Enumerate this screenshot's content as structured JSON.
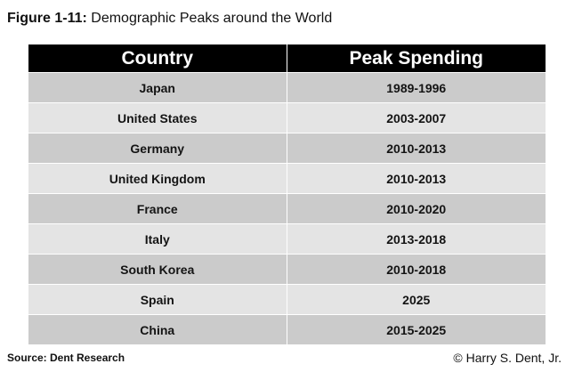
{
  "figure": {
    "label": "Figure 1-11:",
    "title": "Demographic Peaks around the World"
  },
  "table": {
    "headers": [
      "Country",
      "Peak Spending"
    ],
    "rows": [
      [
        "Japan",
        "1989-1996"
      ],
      [
        "United States",
        "2003-2007"
      ],
      [
        "Germany",
        "2010-2013"
      ],
      [
        "United Kingdom",
        "2010-2013"
      ],
      [
        "France",
        "2010-2020"
      ],
      [
        "Italy",
        "2013-2018"
      ],
      [
        "South Korea",
        "2010-2018"
      ],
      [
        "Spain",
        "2025"
      ],
      [
        "China",
        "2015-2025"
      ]
    ]
  },
  "footer": {
    "source": "Source: Dent Research",
    "copyright": "© Harry S. Dent, Jr."
  },
  "colors": {
    "header_bg": "#000000",
    "row_dark": "#cbcbcb",
    "row_light": "#e4e4e4"
  }
}
